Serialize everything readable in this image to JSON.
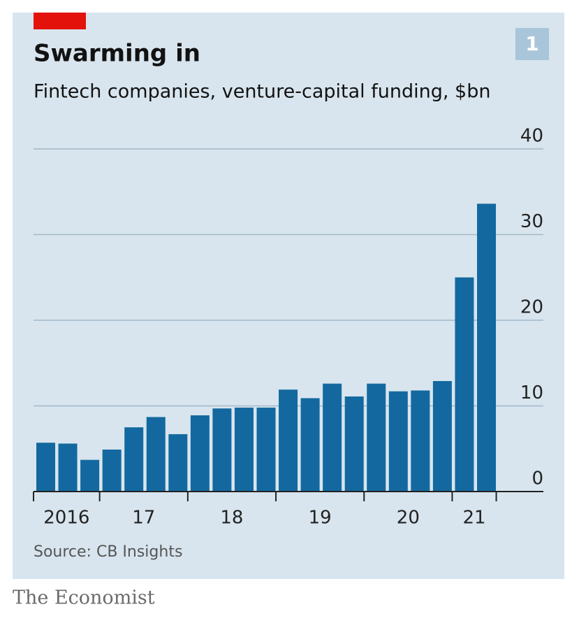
{
  "chart_data": {
    "type": "bar",
    "badge": "1",
    "title": "Swarming in",
    "subtitle": "Fintech companies, venture-capital funding, $bn",
    "categories": [
      "2016",
      null,
      null,
      "17",
      null,
      null,
      null,
      "18",
      null,
      null,
      null,
      "19",
      null,
      null,
      null,
      "20",
      null,
      null,
      null,
      "21",
      null
    ],
    "values": [
      5.7,
      5.6,
      3.7,
      4.9,
      7.5,
      8.7,
      6.7,
      8.9,
      9.7,
      9.8,
      9.8,
      11.9,
      10.9,
      12.6,
      11.1,
      12.6,
      11.7,
      11.8,
      12.9,
      25.0,
      33.6
    ],
    "color": "#13699f",
    "ylim": [
      0,
      40
    ],
    "yticks": [
      0,
      10,
      20,
      30,
      40
    ],
    "grid": true,
    "source": "Source: CB Insights",
    "publisher": "The Economist"
  }
}
